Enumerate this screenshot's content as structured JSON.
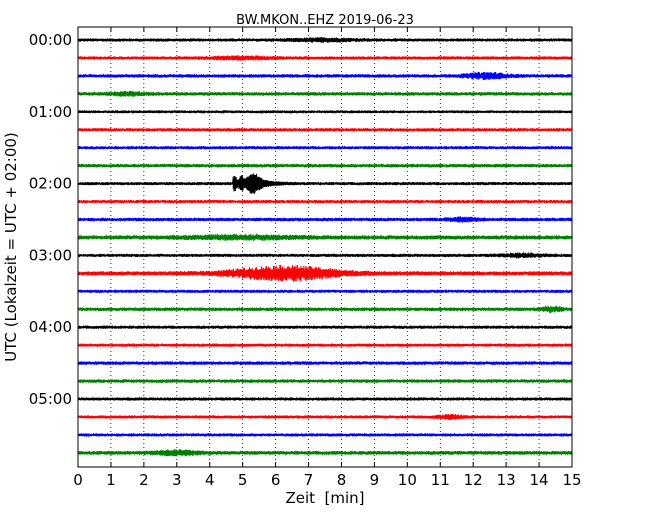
{
  "chart_data": {
    "type": "line",
    "title": "BW.MKON..EHZ 2019-06-23",
    "xlabel": "Zeit  [min]",
    "ylabel": "UTC (Lokalzeit = UTC + 02:00)",
    "xlim": [
      0,
      15
    ],
    "x_ticks": [
      "0",
      "1",
      "2",
      "3",
      "4",
      "5",
      "6",
      "7",
      "8",
      "9",
      "10",
      "11",
      "12",
      "13",
      "14",
      "15"
    ],
    "y_ticks": [
      "00:00",
      "01:00",
      "02:00",
      "03:00",
      "04:00",
      "05:00"
    ],
    "x_grid": "dotted vertical at each minute",
    "trace_interval_minutes": 15,
    "trace_colors": [
      "#000000",
      "#ff0000",
      "#0000ff",
      "#008000"
    ],
    "traces": [
      {
        "start": "00:00",
        "color": "#000000",
        "noise": 1.0,
        "events": [
          {
            "t": 7.5,
            "amp": 1.3,
            "width": 2.0,
            "type": "noise"
          }
        ]
      },
      {
        "start": "00:15",
        "color": "#ff0000",
        "noise": 1.0,
        "events": [
          {
            "t": 5.0,
            "amp": 1.2,
            "width": 2.0,
            "type": "noise"
          }
        ]
      },
      {
        "start": "00:30",
        "color": "#0000ff",
        "noise": 1.1,
        "events": [
          {
            "t": 12.4,
            "amp": 2.6,
            "width": 1.3,
            "type": "noise"
          }
        ]
      },
      {
        "start": "00:45",
        "color": "#008000",
        "noise": 1.1,
        "events": [
          {
            "t": 1.5,
            "amp": 1.4,
            "width": 1.2,
            "type": "noise"
          }
        ]
      },
      {
        "start": "01:00",
        "color": "#000000",
        "noise": 0.9,
        "events": []
      },
      {
        "start": "01:15",
        "color": "#ff0000",
        "noise": 1.0,
        "events": []
      },
      {
        "start": "01:30",
        "color": "#0000ff",
        "noise": 1.0,
        "events": []
      },
      {
        "start": "01:45",
        "color": "#008000",
        "noise": 1.1,
        "events": []
      },
      {
        "start": "02:00",
        "color": "#000000",
        "noise": 1.0,
        "events": [
          {
            "t": 4.7,
            "amp": 10.0,
            "duration": 2.0,
            "type": "quake"
          }
        ]
      },
      {
        "start": "02:15",
        "color": "#ff0000",
        "noise": 1.0,
        "events": []
      },
      {
        "start": "02:30",
        "color": "#0000ff",
        "noise": 1.1,
        "events": [
          {
            "t": 11.7,
            "amp": 1.5,
            "width": 1.0,
            "type": "noise"
          }
        ]
      },
      {
        "start": "02:45",
        "color": "#008000",
        "noise": 1.3,
        "events": [
          {
            "t": 5.0,
            "amp": 1.4,
            "width": 3.5,
            "type": "noise"
          }
        ]
      },
      {
        "start": "03:00",
        "color": "#000000",
        "noise": 1.0,
        "events": [
          {
            "t": 13.5,
            "amp": 1.5,
            "width": 1.2,
            "type": "noise"
          }
        ]
      },
      {
        "start": "03:15",
        "color": "#ff0000",
        "noise": 1.3,
        "events": [
          {
            "t": 6.3,
            "amp": 6.5,
            "width": 3.2,
            "type": "noise"
          }
        ]
      },
      {
        "start": "03:30",
        "color": "#0000ff",
        "noise": 1.0,
        "events": []
      },
      {
        "start": "03:45",
        "color": "#008000",
        "noise": 1.1,
        "events": [
          {
            "t": 14.4,
            "amp": 2.2,
            "width": 0.6,
            "type": "noise"
          }
        ]
      },
      {
        "start": "04:00",
        "color": "#000000",
        "noise": 1.0,
        "events": []
      },
      {
        "start": "04:15",
        "color": "#ff0000",
        "noise": 1.0,
        "events": []
      },
      {
        "start": "04:30",
        "color": "#0000ff",
        "noise": 1.1,
        "events": []
      },
      {
        "start": "04:45",
        "color": "#008000",
        "noise": 1.1,
        "events": []
      },
      {
        "start": "05:00",
        "color": "#000000",
        "noise": 1.0,
        "events": []
      },
      {
        "start": "05:15",
        "color": "#ff0000",
        "noise": 1.0,
        "events": [
          {
            "t": 11.3,
            "amp": 1.6,
            "width": 0.8,
            "type": "noise"
          }
        ]
      },
      {
        "start": "05:30",
        "color": "#0000ff",
        "noise": 1.0,
        "events": []
      },
      {
        "start": "05:45",
        "color": "#008000",
        "noise": 1.2,
        "events": [
          {
            "t": 3.0,
            "amp": 1.8,
            "width": 1.4,
            "type": "noise"
          }
        ]
      }
    ]
  }
}
